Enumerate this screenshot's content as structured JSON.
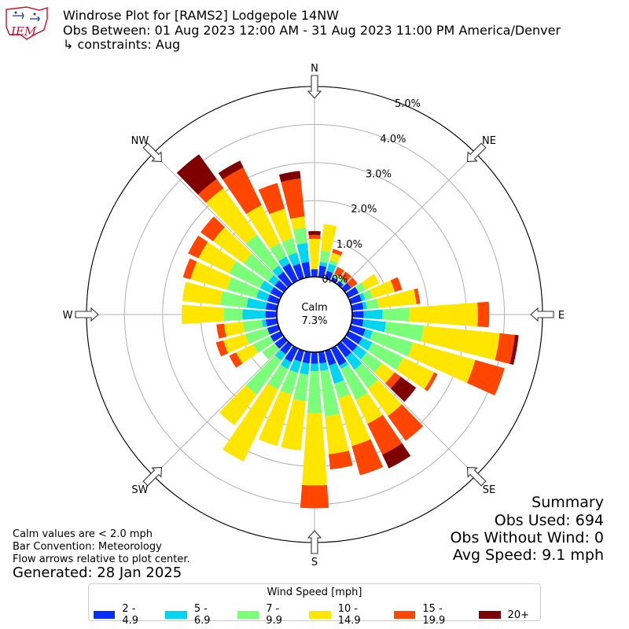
{
  "header": {
    "logo_text": "IEM",
    "title_line1": "Windrose Plot for [RAMS2] Lodgepole 14NW",
    "title_line2": "Obs Between: 01 Aug 2023 12:00 AM - 31 Aug 2023 11:00 PM America/Denver",
    "title_line3": "↳ constraints: Aug"
  },
  "chart_data": {
    "type": "windrose",
    "directions": [
      "N",
      "NNE",
      "NE",
      "ENE",
      "E",
      "ESE",
      "SE",
      "SSE",
      "S",
      "SSW",
      "SW",
      "WSW",
      "W",
      "WNW",
      "NW",
      "NNW"
    ],
    "compass_labels": [
      "N",
      "NE",
      "E",
      "SE",
      "S",
      "SW",
      "W",
      "NW"
    ],
    "radial_ticks": [
      "0.0%",
      "1.0%",
      "2.0%",
      "3.0%",
      "4.0%",
      "5.0%"
    ],
    "rmax": 5.0,
    "calm_label": "Calm",
    "calm_percent": "7.3%",
    "speed_bins": [
      "2 - 4.9",
      "5 - 6.9",
      "7 - 9.9",
      "10 - 14.9",
      "15 - 19.9",
      "20+"
    ],
    "colors": [
      "#0a2cff",
      "#00d5f0",
      "#7bff7b",
      "#ffe600",
      "#ff4500",
      "#7f0000"
    ],
    "note": "cumulative frequency percent per 10-degree direction bin, stacked by speed bin",
    "bars": [
      {
        "dir": 0,
        "cum": [
          0.2,
          0.2,
          0.2,
          1.0,
          1.1,
          1.2
        ]
      },
      {
        "dir": 10,
        "cum": [
          0.3,
          0.4,
          0.7,
          1.4,
          1.4,
          1.4
        ]
      },
      {
        "dir": 20,
        "cum": [
          0.2,
          0.4,
          0.5,
          0.7,
          0.8,
          0.8
        ]
      },
      {
        "dir": 30,
        "cum": [
          0.1,
          0.1,
          0.2,
          0.2,
          0.4,
          0.4
        ]
      },
      {
        "dir": 40,
        "cum": [
          0.1,
          0.1,
          0.2,
          0.2,
          0.4,
          0.4
        ]
      },
      {
        "dir": 50,
        "cum": [
          0.2,
          0.2,
          0.2,
          0.2,
          0.4,
          0.4
        ]
      },
      {
        "dir": 60,
        "cum": [
          0.3,
          0.3,
          0.5,
          0.9,
          0.9,
          0.9
        ]
      },
      {
        "dir": 70,
        "cum": [
          0.3,
          0.4,
          0.6,
          1.2,
          1.4,
          1.4
        ]
      },
      {
        "dir": 80,
        "cum": [
          0.3,
          0.4,
          0.7,
          1.7,
          1.8,
          1.8
        ]
      },
      {
        "dir": 90,
        "cum": [
          0.3,
          0.8,
          1.5,
          3.3,
          3.6,
          3.6
        ]
      },
      {
        "dir": 100,
        "cum": [
          0.3,
          0.9,
          1.9,
          3.9,
          4.3,
          4.4
        ]
      },
      {
        "dir": 110,
        "cum": [
          0.4,
          0.6,
          1.7,
          3.4,
          4.2,
          4.2
        ]
      },
      {
        "dir": 120,
        "cum": [
          0.4,
          0.7,
          1.6,
          2.5,
          2.6,
          2.6
        ]
      },
      {
        "dir": 130,
        "cum": [
          0.4,
          0.7,
          1.2,
          1.6,
          1.8,
          2.3
        ]
      },
      {
        "dir": 140,
        "cum": [
          0.4,
          0.8,
          1.4,
          2.3,
          3.1,
          3.1
        ]
      },
      {
        "dir": 150,
        "cum": [
          0.5,
          0.6,
          1.5,
          2.2,
          3.1,
          3.5
        ]
      },
      {
        "dir": 160,
        "cum": [
          0.4,
          0.9,
          1.3,
          2.6,
          3.4,
          3.4
        ]
      },
      {
        "dir": 170,
        "cum": [
          0.3,
          0.5,
          1.7,
          2.7,
          3.1,
          3.1
        ]
      },
      {
        "dir": 180,
        "cum": [
          0.3,
          0.5,
          1.6,
          3.5,
          4.1,
          4.1
        ]
      },
      {
        "dir": 190,
        "cum": [
          0.3,
          0.6,
          1.3,
          2.6,
          2.6,
          2.6
        ]
      },
      {
        "dir": 200,
        "cum": [
          0.3,
          0.6,
          1.2,
          2.6,
          2.6,
          2.6
        ]
      },
      {
        "dir": 210,
        "cum": [
          0.4,
          0.6,
          1.2,
          3.3,
          3.3,
          3.3
        ]
      },
      {
        "dir": 220,
        "cum": [
          0.3,
          0.5,
          1.6,
          2.6,
          2.6,
          2.6
        ]
      },
      {
        "dir": 230,
        "cum": [
          0.3,
          0.3,
          0.7,
          0.7,
          0.7,
          0.7
        ]
      },
      {
        "dir": 240,
        "cum": [
          0.3,
          0.3,
          0.8,
          1.3,
          1.5,
          1.5
        ]
      },
      {
        "dir": 250,
        "cum": [
          0.3,
          0.3,
          0.9,
          1.5,
          1.7,
          1.7
        ]
      },
      {
        "dir": 260,
        "cum": [
          0.3,
          0.4,
          0.9,
          1.4,
          1.6,
          1.6
        ]
      },
      {
        "dir": 270,
        "cum": [
          0.3,
          0.9,
          1.4,
          2.5,
          2.5,
          2.5
        ]
      },
      {
        "dir": 280,
        "cum": [
          0.3,
          0.8,
          1.5,
          2.5,
          2.5,
          2.5
        ]
      },
      {
        "dir": 290,
        "cum": [
          0.3,
          0.6,
          1.4,
          2.4,
          2.6,
          2.6
        ]
      },
      {
        "dir": 300,
        "cum": [
          0.3,
          0.6,
          1.5,
          2.4,
          2.7,
          2.7
        ]
      },
      {
        "dir": 310,
        "cum": [
          0.3,
          0.5,
          1.3,
          2.3,
          2.7,
          2.7
        ]
      },
      {
        "dir": 320,
        "cum": [
          0.4,
          0.6,
          1.6,
          3.1,
          3.4,
          4.2
        ]
      },
      {
        "dir": 330,
        "cum": [
          0.5,
          0.7,
          1.1,
          2.2,
          3.3,
          3.5
        ]
      },
      {
        "dir": 340,
        "cum": [
          0.4,
          0.7,
          1.1,
          1.9,
          2.6,
          2.6
        ]
      },
      {
        "dir": 350,
        "cum": [
          0.4,
          0.9,
          1.3,
          1.6,
          2.6,
          2.8
        ]
      }
    ]
  },
  "notes": {
    "calm": "Calm values are < 2.0 mph",
    "convention": "Bar Convention: Meteorology",
    "flow": "Flow arrows relative to plot center.",
    "generated": "Generated: 28 Jan 2025"
  },
  "summary": {
    "title": "Summary",
    "obs_used": "Obs Used: 694",
    "obs_without_wind": "Obs Without Wind: 0",
    "avg_speed": "Avg Speed: 9.1 mph"
  },
  "legend": {
    "title": "Wind Speed [mph]",
    "items": [
      "2 - 4.9",
      "5 - 6.9",
      "7 - 9.9",
      "10 - 14.9",
      "15 - 19.9",
      "20+"
    ]
  }
}
